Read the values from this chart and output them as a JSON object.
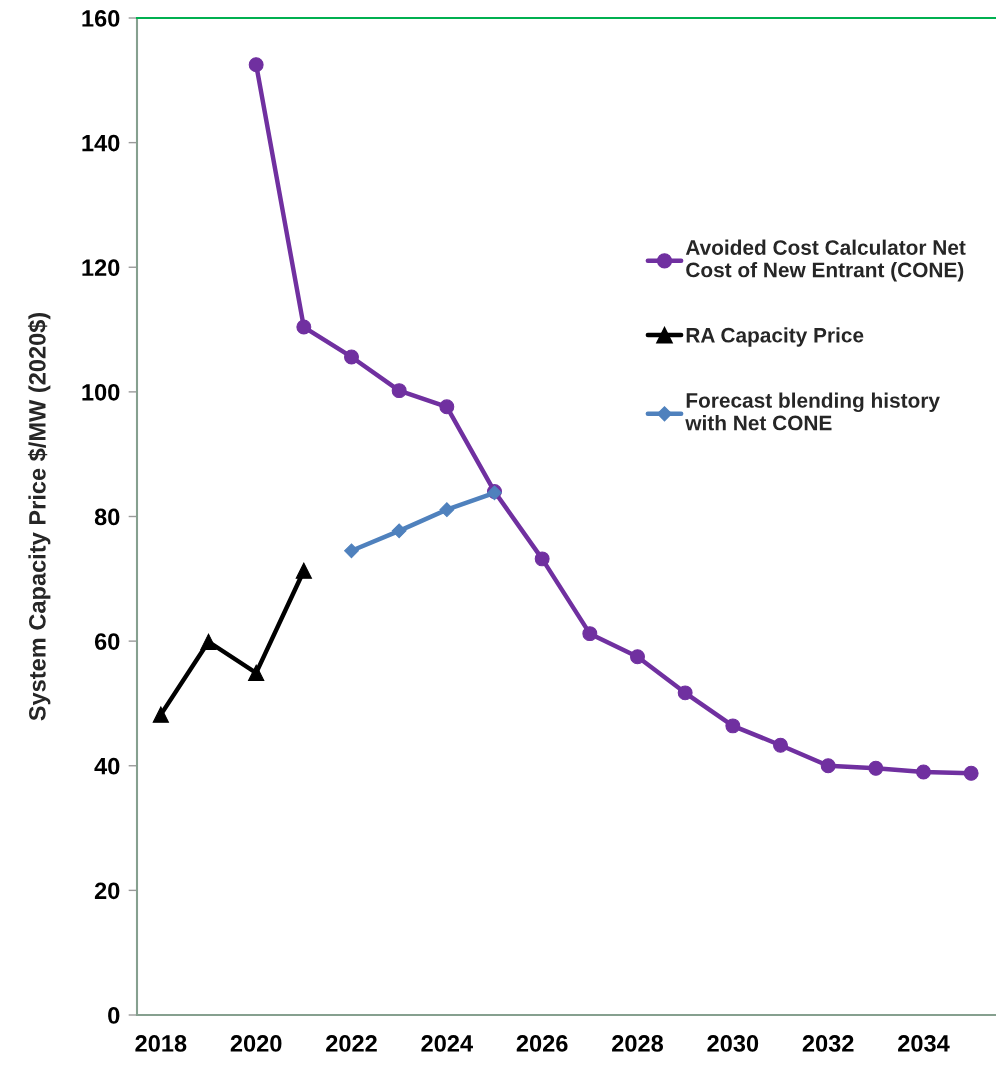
{
  "chart_data": {
    "type": "line",
    "ylabel": "System Capacity Price $/MW (2020$)",
    "categories": [
      "2018",
      null,
      "2020",
      null,
      "2022",
      null,
      "2024",
      null,
      "2026",
      null,
      "2028",
      null,
      "2030",
      null,
      "2032",
      null,
      "2034",
      null
    ],
    "ylim": [
      0,
      160
    ],
    "yticks": [
      0,
      20,
      40,
      60,
      80,
      100,
      120,
      140,
      160
    ],
    "grid": false,
    "legend": "right",
    "line_style": "solid",
    "series": [
      {
        "name": "Avoided Cost Calculator Net\nCost of New Entrant (CONE)",
        "color": "#7030a0",
        "marker": "circle",
        "values": [
          null,
          null,
          152.5,
          110.4,
          105.6,
          100.2,
          97.6,
          84.0,
          73.2,
          61.2,
          57.5,
          51.7,
          46.4,
          43.3,
          40.0,
          39.6,
          39.0,
          38.8
        ]
      },
      {
        "name": "RA Capacity Price",
        "color": "#000000",
        "marker": "triangle",
        "values": [
          48.2,
          59.9,
          54.9,
          71.3,
          null,
          null,
          null,
          null,
          null,
          null,
          null,
          null,
          null,
          null,
          null,
          null,
          null,
          null
        ]
      },
      {
        "name": "Forecast blending history\nwith Net CONE",
        "color": "#4f81bd",
        "marker": "diamond",
        "values": [
          null,
          null,
          null,
          null,
          74.5,
          77.7,
          81.1,
          83.8,
          null,
          null,
          null,
          null,
          null,
          null,
          null,
          null,
          null,
          null
        ]
      }
    ]
  }
}
